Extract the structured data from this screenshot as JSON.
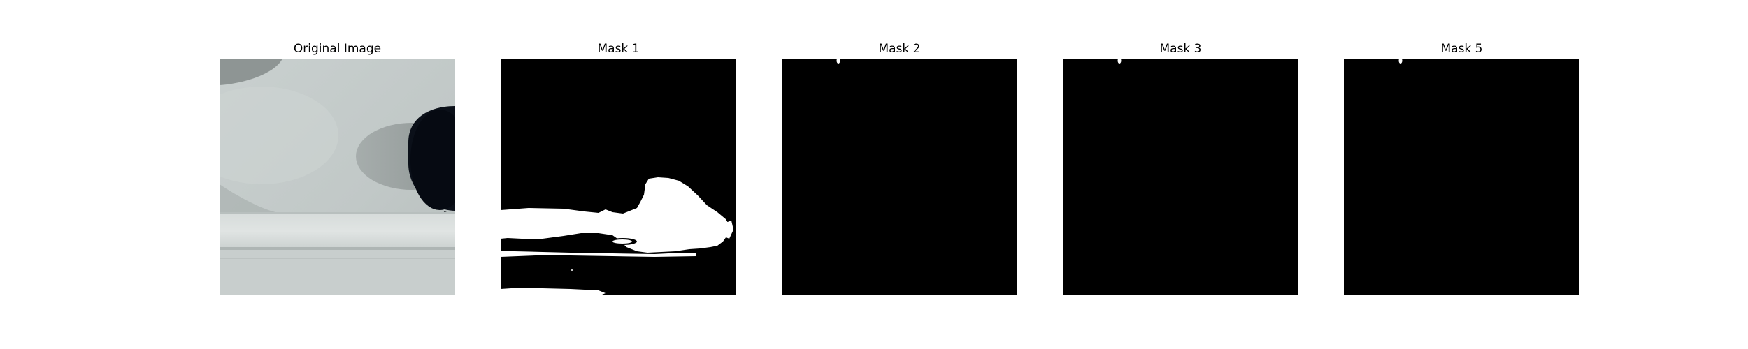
{
  "panels": [
    {
      "title": "Original Image",
      "content": "photo"
    },
    {
      "title": "Mask 1",
      "content": "mask"
    },
    {
      "title": "Mask 2",
      "content": "mask"
    },
    {
      "title": "Mask 3",
      "content": "mask"
    },
    {
      "title": "Mask 5",
      "content": "mask"
    }
  ],
  "colors": {
    "background": "#ffffff",
    "mask_off": "#000000",
    "mask_on": "#ffffff",
    "photo_surface": "#c4cbca",
    "photo_shadow": "#8f9695",
    "photo_dark_opening": "#0a0f18",
    "photo_rail": "#d9dedd"
  }
}
